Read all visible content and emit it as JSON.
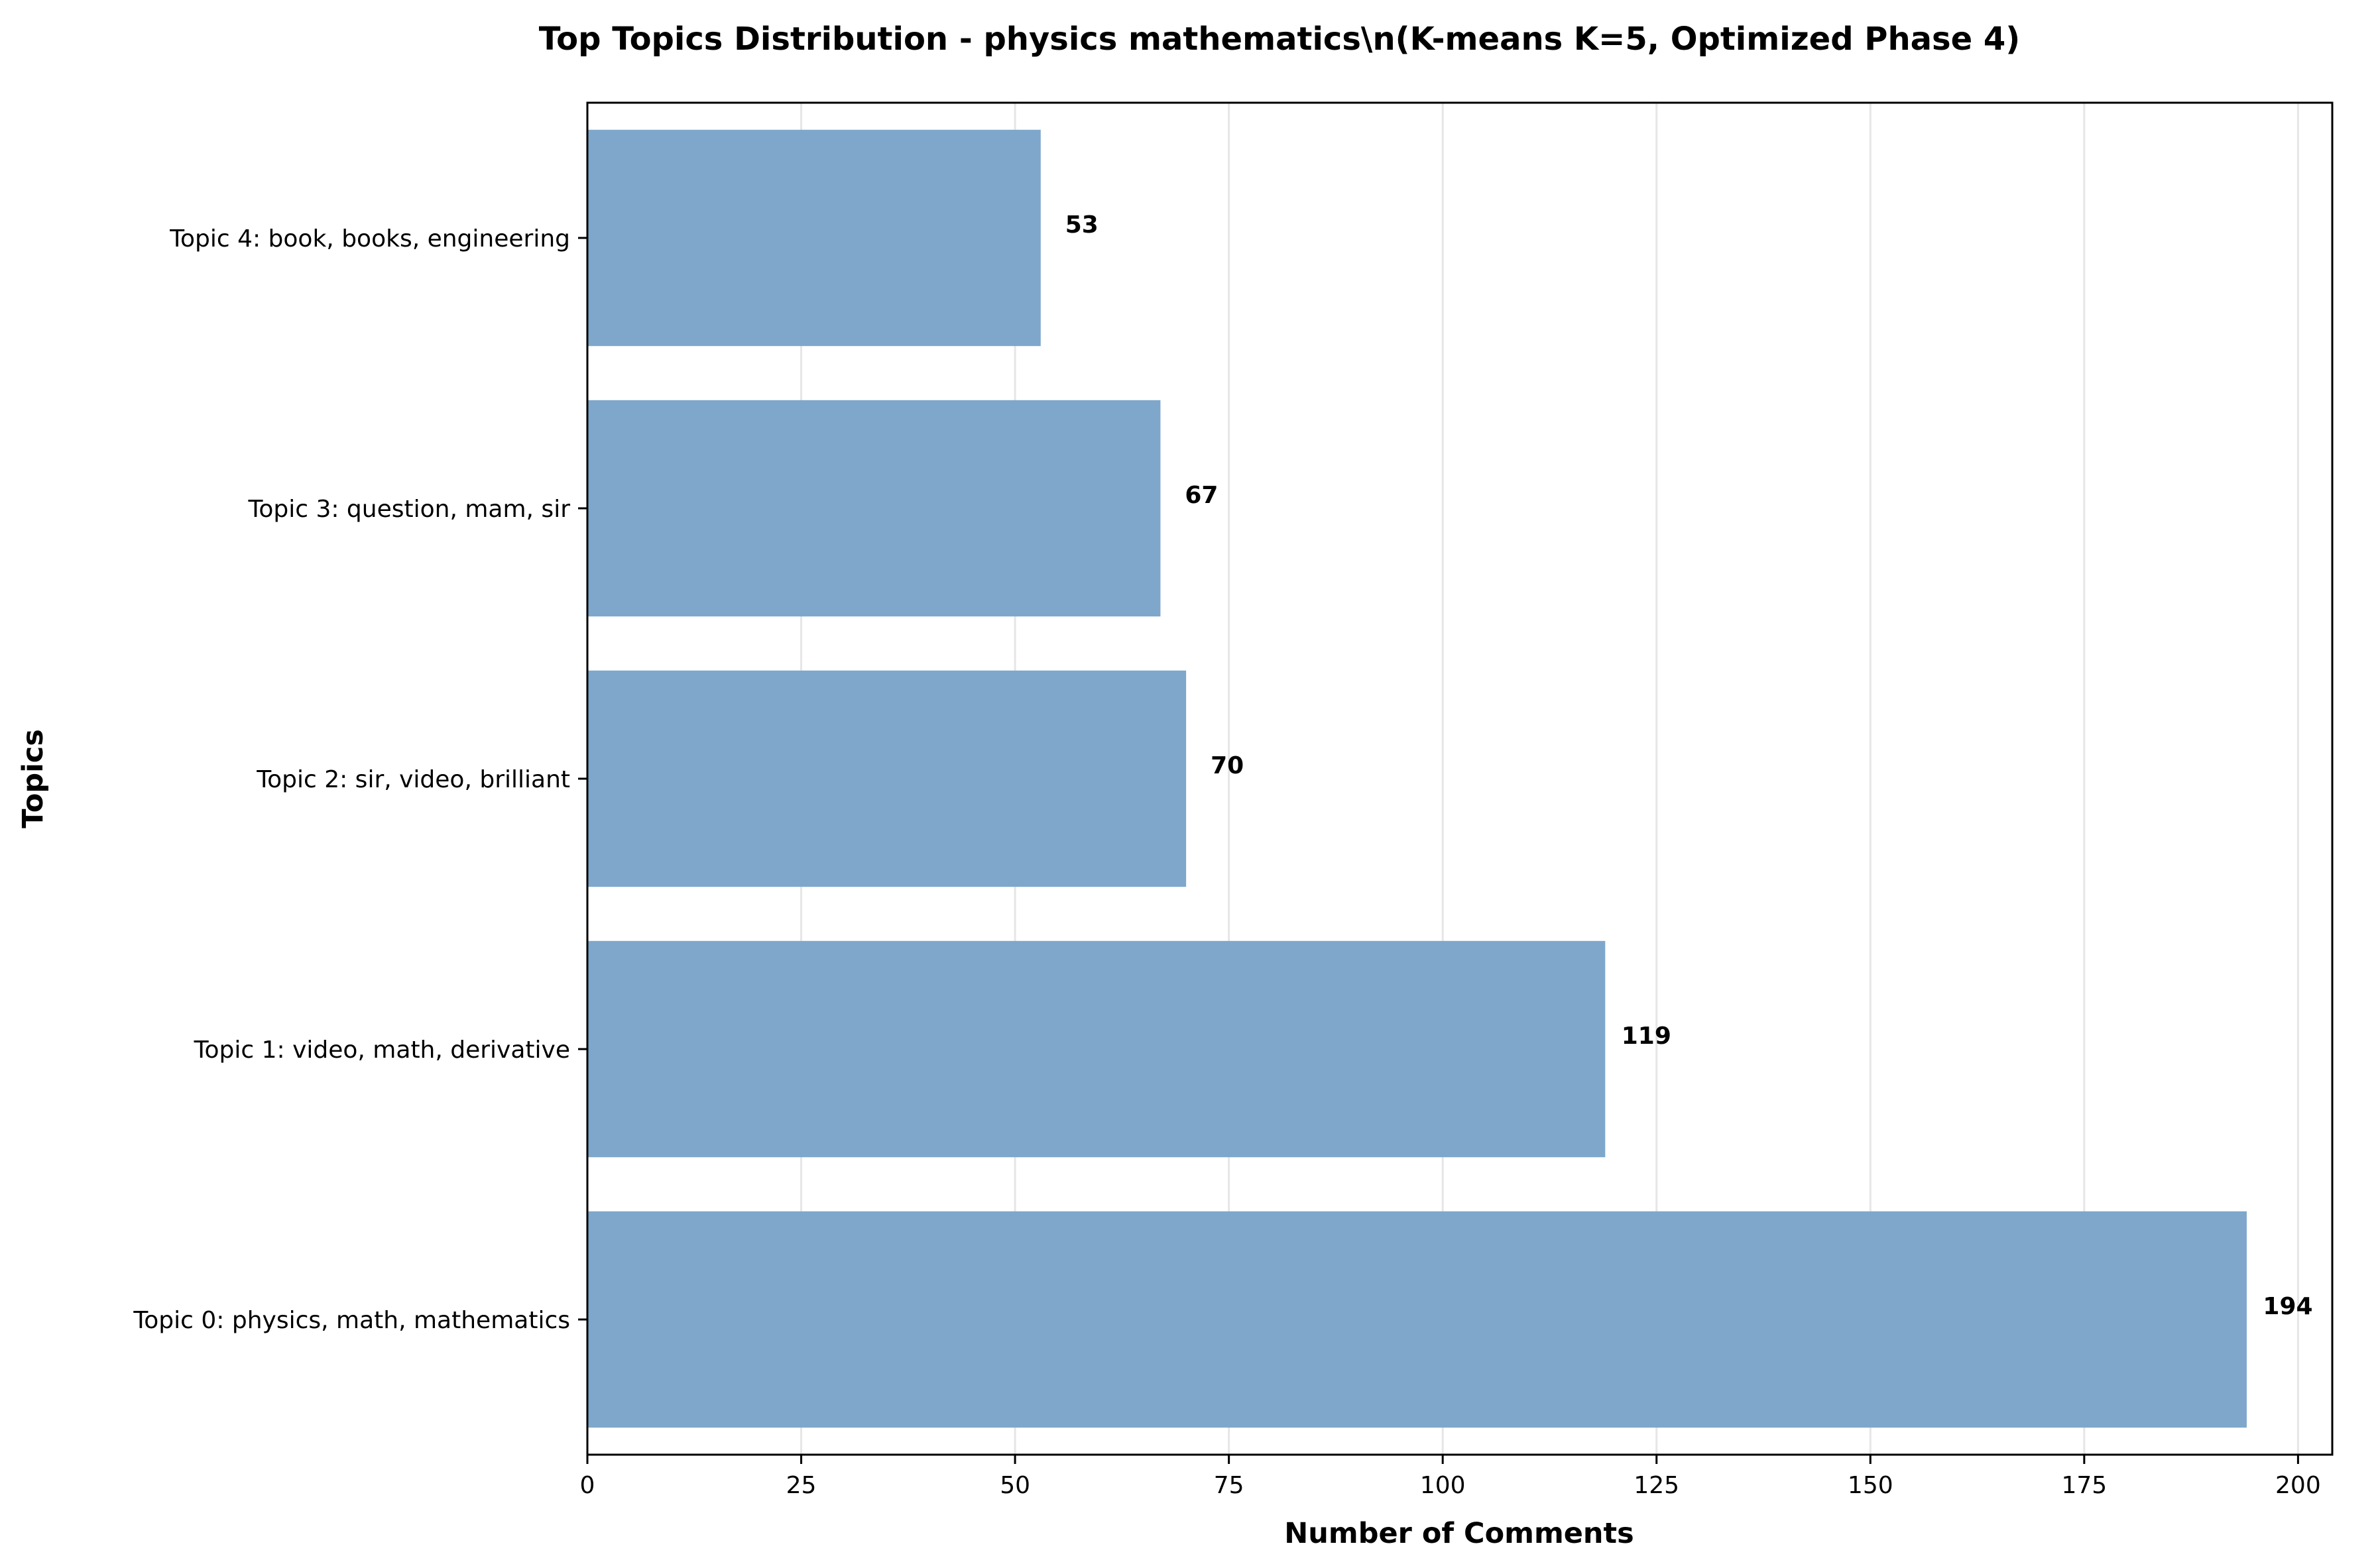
{
  "chart_data": {
    "type": "bar",
    "orientation": "horizontal",
    "title": "Top Topics Distribution - physics mathematics\\n(K-means K=5, Optimized Phase 4)",
    "xlabel": "Number of Comments",
    "ylabel": "Topics",
    "categories": [
      "Topic 0: physics, math, mathematics",
      "Topic 1: video, math, derivative",
      "Topic 2: sir, video, brilliant",
      "Topic 3: question, mam, sir",
      "Topic 4: book, books, engineering"
    ],
    "values": [
      194,
      119,
      70,
      67,
      53
    ],
    "value_labels": [
      "194",
      "119",
      "70",
      "67",
      "53"
    ],
    "xlim": [
      0,
      204
    ],
    "xticks": [
      0,
      25,
      50,
      75,
      100,
      125,
      150,
      175,
      200
    ],
    "xtick_labels": [
      "0",
      "25",
      "50",
      "75",
      "100",
      "125",
      "150",
      "175",
      "200"
    ],
    "grid": "vertical",
    "bar_color": "#7ea7cb",
    "grid_color": "#e6e6e6"
  }
}
